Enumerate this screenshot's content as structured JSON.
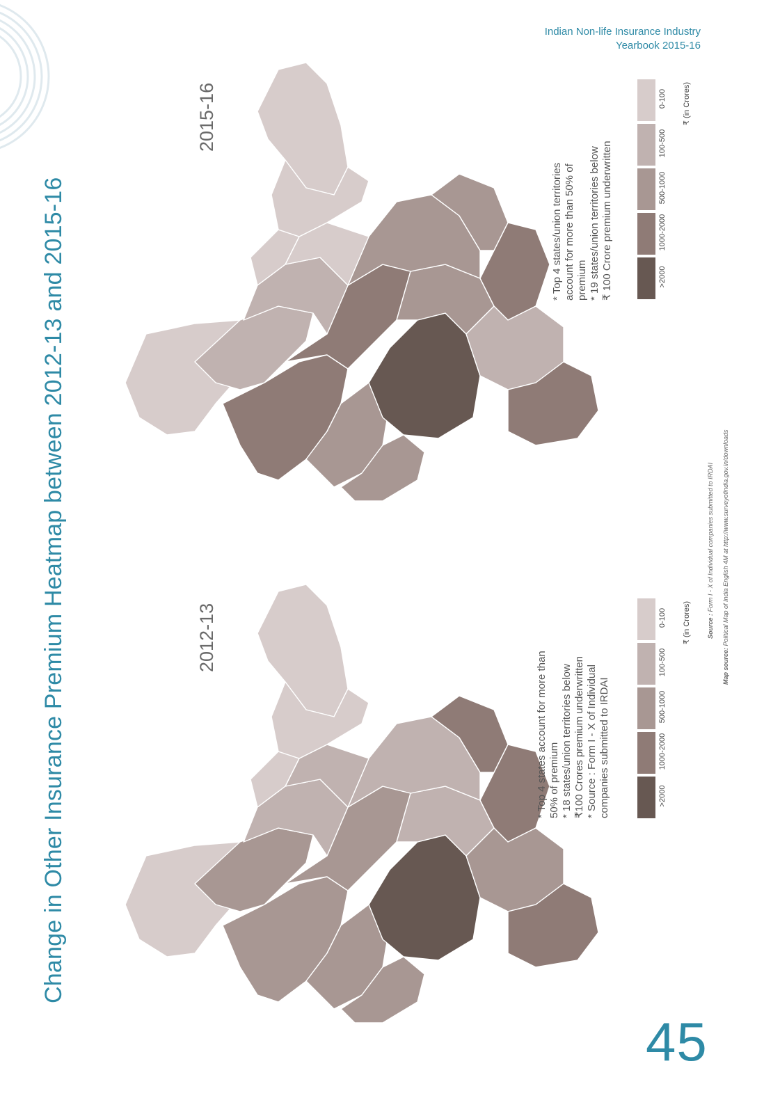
{
  "header": {
    "line1": "Indian Non-life Insurance Industry",
    "line2": "Yearbook 2015-16"
  },
  "title": "Change in Other Insurance Premium Heatmap between 2012-13 and 2015-16",
  "page_number": "45",
  "legend_bins": [
    {
      "label": "0-100",
      "color": "#d7cccb"
    },
    {
      "label": "100-500",
      "color": "#c0b2b0"
    },
    {
      "label": "500-1000",
      "color": "#a89793"
    },
    {
      "label": "1000-2000",
      "color": "#8f7b76"
    },
    {
      "label": ">2000",
      "color": "#675852"
    }
  ],
  "unit_label": "₹ (in Crores)",
  "map_2015": {
    "year": "2015-16",
    "notes": [
      "* Top 4 states/union territories",
      "   account for more than 50% of",
      "   premium",
      "* 19 states/union territories below",
      "   ₹ 100 Crore premium underwritten"
    ]
  },
  "map_2012": {
    "year": "2012-13",
    "notes": [
      "* Top 4 states account for more than",
      "   50% of premium",
      "* 18 states/union territories below",
      "   ₹100 Crores premium underwritten",
      "* Source : Form I - X of Individual",
      "   companies submitted to IRDAI"
    ]
  },
  "source": {
    "label": "Source :",
    "text": "Form I - X of Individual companies submitted to IRDAI"
  },
  "map_source": {
    "label": "Map source:",
    "text": "Political Map of India English 4M at http://www.surveyofindia.gov.in/downloads"
  }
}
